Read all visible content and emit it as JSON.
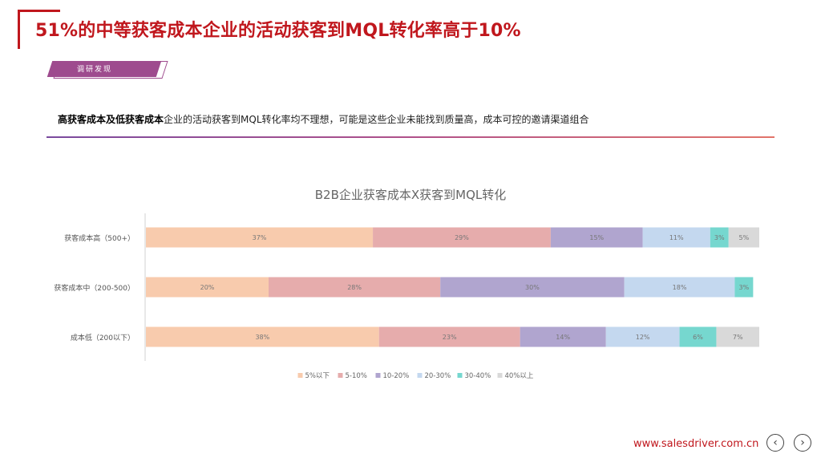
{
  "header": {
    "title": "51%的中等获客成本企业的活动获客到MQL转化率高于10%",
    "tag": "调研发现",
    "subtitle_bold": "高获客成本及低获客成本",
    "subtitle_rest": "企业的活动获客到MQL转化率均不理想，可能是这些企业未能找到质量高，成本可控的邀请渠道组合"
  },
  "chart_data": {
    "type": "bar",
    "orientation": "horizontal",
    "stacked": true,
    "percent_stacked": true,
    "title": "B2B企业获客成本X获客到MQL转化",
    "categories": [
      "获客成本高（500+）",
      "获客成本中（200-500）",
      "成本低（200以下）"
    ],
    "series": [
      {
        "name": "5%以下",
        "color": "#f8cbad",
        "values": [
          37,
          20,
          38
        ],
        "labels": [
          "37%",
          "20%",
          "38%"
        ]
      },
      {
        "name": "5-10%",
        "color": "#e6acac",
        "values": [
          29,
          28,
          23
        ],
        "labels": [
          "29%",
          "28%",
          "23%"
        ]
      },
      {
        "name": "10-20%",
        "color": "#b0a5cf",
        "values": [
          15,
          30,
          14
        ],
        "labels": [
          "15%",
          "30%",
          "14%"
        ]
      },
      {
        "name": "20-30%",
        "color": "#c4d8ef",
        "values": [
          11,
          18,
          12
        ],
        "labels": [
          "11%",
          "18%",
          "12%"
        ]
      },
      {
        "name": "30-40%",
        "color": "#76d7cf",
        "values": [
          3,
          3,
          6
        ],
        "labels": [
          "3%",
          "3%",
          "6%"
        ]
      },
      {
        "name": "40%以上",
        "color": "#d9d9d9",
        "values": [
          5,
          0,
          7
        ],
        "labels": [
          "5%",
          "",
          "7%"
        ]
      }
    ],
    "xlim": [
      0,
      100
    ],
    "legend": "bottom",
    "grid": false
  },
  "footer": {
    "url": "www.salesdriver.com.cn",
    "prev_icon": "chevron-left-icon",
    "next_icon": "chevron-right-icon",
    "prev_glyph": "‹",
    "next_glyph": "›"
  }
}
